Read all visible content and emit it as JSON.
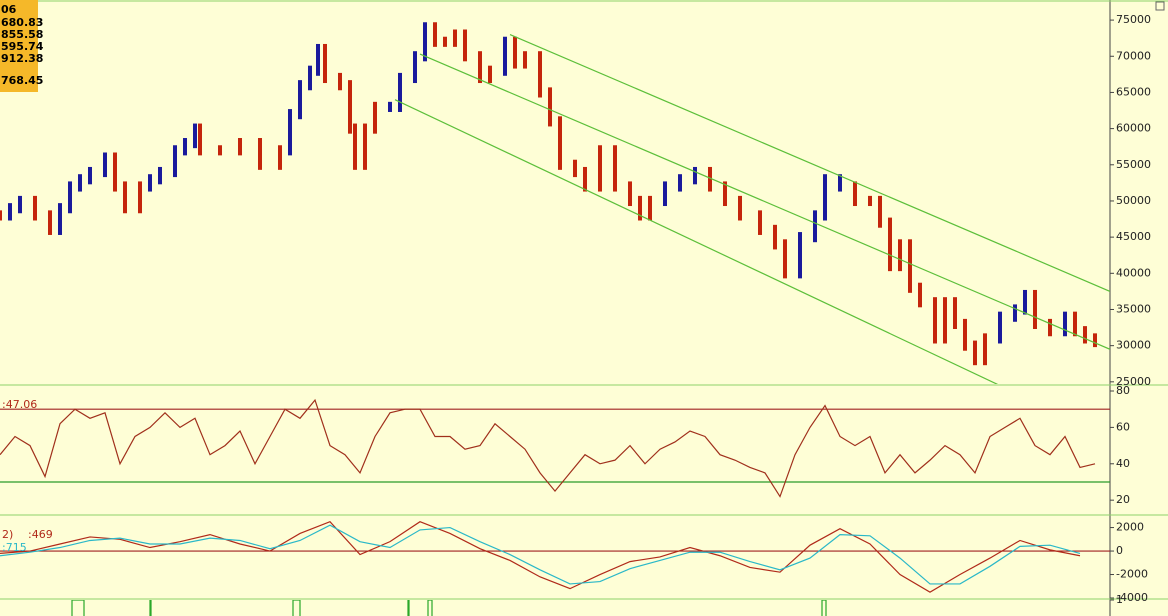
{
  "info_box": [
    "06",
    "680.83",
    "855.58",
    "595.74",
    "912.38",
    "768.45"
  ],
  "chart_data": [
    {
      "type": "hilo",
      "xlim": [
        0,
        1110
      ],
      "ylim": [
        24700,
        77500
      ],
      "yticks": [
        25000,
        30000,
        35000,
        40000,
        45000,
        50000,
        55000,
        60000,
        65000,
        70000,
        75000
      ],
      "palette": [
        "#c4250c",
        "#1a1a9c"
      ],
      "x": [
        0,
        10,
        20,
        35,
        50,
        60,
        70,
        80,
        90,
        105,
        115,
        125,
        140,
        150,
        160,
        175,
        185,
        195,
        200,
        220,
        240,
        260,
        280,
        290,
        300,
        310,
        318,
        325,
        340,
        350,
        355,
        365,
        375,
        390,
        400,
        415,
        425,
        435,
        445,
        455,
        465,
        480,
        490,
        505,
        515,
        525,
        540,
        550,
        560,
        575,
        585,
        600,
        615,
        630,
        640,
        650,
        665,
        680,
        695,
        710,
        725,
        740,
        760,
        775,
        785,
        800,
        815,
        825,
        840,
        855,
        870,
        880,
        890,
        900,
        910,
        920,
        935,
        945,
        955,
        965,
        975,
        985,
        1000,
        1015,
        1025,
        1035,
        1050,
        1065,
        1075,
        1085,
        1095
      ],
      "high": [
        48700,
        49700,
        50700,
        50700,
        48700,
        49700,
        52700,
        53700,
        54700,
        56700,
        56700,
        52700,
        52700,
        53700,
        54700,
        57700,
        58700,
        60700,
        60700,
        57700,
        58700,
        58700,
        57700,
        62700,
        66700,
        68700,
        71700,
        71700,
        67700,
        66700,
        60700,
        60700,
        63700,
        63700,
        67700,
        70700,
        74700,
        74700,
        72700,
        73700,
        73700,
        70700,
        68700,
        72700,
        72700,
        70700,
        70700,
        65700,
        61700,
        55700,
        54700,
        57700,
        57700,
        52700,
        50700,
        50700,
        52700,
        53700,
        54700,
        54700,
        52700,
        50700,
        48700,
        46700,
        44700,
        45700,
        48700,
        53700,
        53700,
        52700,
        50700,
        50700,
        47700,
        44700,
        44700,
        38700,
        36700,
        36700,
        36700,
        33700,
        30700,
        31700,
        34700,
        35700,
        37700,
        37700,
        33700,
        34700,
        34700,
        32700,
        31700
      ],
      "low": [
        47300,
        47300,
        48300,
        47300,
        45300,
        45300,
        48300,
        51300,
        52300,
        53300,
        51300,
        48300,
        48300,
        51300,
        52300,
        53300,
        56300,
        57300,
        56300,
        56300,
        56300,
        54300,
        54300,
        56300,
        61300,
        65300,
        67300,
        66300,
        65300,
        59300,
        54300,
        54300,
        59300,
        62300,
        62300,
        66300,
        69300,
        71300,
        71300,
        71300,
        69300,
        66300,
        66300,
        67300,
        68300,
        68300,
        64300,
        60300,
        54300,
        53300,
        51300,
        51300,
        51300,
        49300,
        47300,
        47300,
        49300,
        51300,
        52300,
        51300,
        49300,
        47300,
        45300,
        43300,
        39300,
        39300,
        44300,
        47300,
        51300,
        49300,
        49300,
        46300,
        40300,
        40300,
        37300,
        35300,
        30300,
        30300,
        32300,
        29300,
        27300,
        27300,
        30300,
        33300,
        34300,
        32300,
        31300,
        31300,
        31300,
        30300,
        29800
      ],
      "color_index": [
        0,
        1,
        1,
        0,
        0,
        1,
        1,
        1,
        1,
        1,
        0,
        0,
        0,
        1,
        1,
        1,
        1,
        1,
        0,
        0,
        0,
        0,
        0,
        1,
        1,
        1,
        1,
        0,
        0,
        0,
        0,
        0,
        0,
        1,
        1,
        1,
        1,
        0,
        0,
        0,
        0,
        0,
        0,
        1,
        0,
        0,
        0,
        0,
        0,
        0,
        0,
        0,
        0,
        0,
        0,
        0,
        1,
        1,
        1,
        0,
        0,
        0,
        0,
        0,
        0,
        1,
        1,
        1,
        1,
        0,
        0,
        0,
        0,
        0,
        0,
        0,
        0,
        0,
        0,
        0,
        0,
        0,
        1,
        1,
        1,
        0,
        0,
        1,
        0,
        0,
        0
      ],
      "channel_color": "#5cbf3a",
      "channel": [
        {
          "x": [
            510,
            1110
          ],
          "y": [
            73000,
            37500
          ]
        },
        {
          "x": [
            420,
            1110
          ],
          "y": [
            70300,
            29500
          ]
        },
        {
          "x": [
            395,
            1110
          ],
          "y": [
            64000,
            17300
          ]
        }
      ]
    },
    {
      "type": "line",
      "xlim": [
        0,
        1110
      ],
      "ylim": [
        12.4,
        82.2
      ],
      "yticks": [
        20,
        40,
        60,
        80
      ],
      "labels": [
        [
          {
            "text": ":47.06",
            "color": "#b02a1a"
          }
        ]
      ],
      "hlines": [
        {
          "value": 70,
          "color": "#a02020"
        },
        {
          "value": 30,
          "color": "#2a9a2a"
        }
      ],
      "x": [
        0,
        15,
        30,
        45,
        60,
        75,
        90,
        105,
        120,
        135,
        150,
        165,
        180,
        195,
        210,
        225,
        240,
        255,
        270,
        285,
        300,
        315,
        330,
        345,
        360,
        375,
        390,
        405,
        420,
        435,
        450,
        465,
        480,
        495,
        510,
        525,
        540,
        555,
        570,
        585,
        600,
        615,
        630,
        645,
        660,
        675,
        690,
        705,
        720,
        735,
        750,
        765,
        780,
        795,
        810,
        825,
        840,
        855,
        870,
        885,
        900,
        915,
        930,
        945,
        960,
        975,
        990,
        1005,
        1020,
        1035,
        1050,
        1065,
        1080,
        1095
      ],
      "series": [
        {
          "color": "#a0301c",
          "values": [
            45,
            55,
            50,
            33,
            62,
            70,
            65,
            68,
            40,
            55,
            60,
            68,
            60,
            65,
            45,
            50,
            58,
            40,
            55,
            70,
            65,
            75,
            50,
            45,
            35,
            55,
            68,
            70,
            70,
            55,
            55,
            48,
            50,
            62,
            55,
            48,
            35,
            25,
            35,
            45,
            40,
            42,
            50,
            40,
            48,
            52,
            58,
            55,
            45,
            42,
            38,
            35,
            22,
            45,
            60,
            72,
            55,
            50,
            55,
            35,
            45,
            35,
            42,
            50,
            45,
            35,
            55,
            60,
            65,
            50,
            45,
            55,
            38,
            40
          ]
        }
      ]
    },
    {
      "type": "line",
      "xlim": [
        0,
        1110
      ],
      "ylim": [
        -4000,
        2900
      ],
      "yticks": [
        2000,
        0,
        -2000,
        -4000
      ],
      "labels": [
        [
          {
            "text": "2)",
            "color": "#b02a1a"
          },
          {
            "text": ":469",
            "color": "#b02a1a"
          }
        ],
        [
          {
            "text": ":715",
            "color": "#2ab8c8"
          }
        ]
      ],
      "hlines": [
        {
          "value": 0,
          "color": "#a02020"
        }
      ],
      "x": [
        0,
        30,
        60,
        90,
        120,
        150,
        180,
        210,
        240,
        270,
        300,
        330,
        360,
        390,
        420,
        450,
        480,
        510,
        540,
        570,
        600,
        630,
        660,
        690,
        720,
        750,
        780,
        810,
        840,
        870,
        900,
        930,
        960,
        990,
        1020,
        1050,
        1080
      ],
      "series": [
        {
          "color": "#b02a1a",
          "values": [
            -200,
            0,
            600,
            1200,
            1000,
            300,
            800,
            1400,
            600,
            0,
            1500,
            2500,
            -300,
            800,
            2500,
            1500,
            200,
            -800,
            -2200,
            -3200,
            -2000,
            -900,
            -500,
            300,
            -400,
            -1400,
            -1800,
            500,
            1900,
            600,
            -2000,
            -3500,
            -2000,
            -600,
            900,
            100,
            -400
          ]
        },
        {
          "color": "#2ab8c8",
          "values": [
            -400,
            -100,
            300,
            900,
            1100,
            600,
            600,
            1100,
            900,
            200,
            900,
            2200,
            800,
            300,
            1800,
            2000,
            800,
            -300,
            -1600,
            -2800,
            -2600,
            -1500,
            -800,
            -100,
            -100,
            -900,
            -1600,
            -600,
            1400,
            1300,
            -600,
            -2800,
            -2800,
            -1300,
            400,
            500,
            -200
          ]
        }
      ]
    },
    {
      "type": "pulse",
      "xlim": [
        0,
        1110
      ],
      "ylim": [
        0,
        1
      ],
      "yticks": [
        1
      ],
      "color": "#2aa82a",
      "events": [
        [
          72,
          84
        ],
        [
          150,
          151
        ],
        [
          293,
          300
        ],
        [
          408,
          409
        ],
        [
          428,
          432
        ],
        [
          822,
          826
        ]
      ]
    }
  ]
}
